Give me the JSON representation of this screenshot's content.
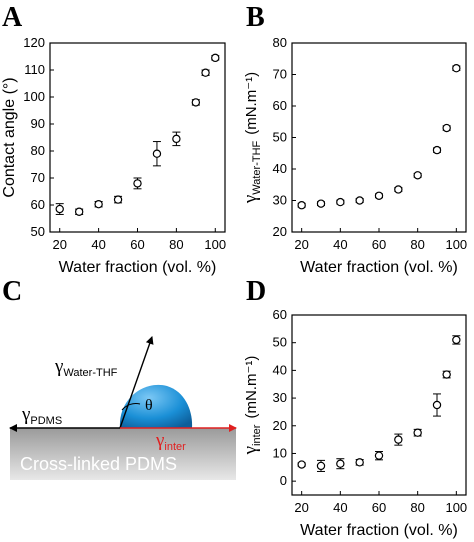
{
  "panels": {
    "A": "A",
    "B": "B",
    "C": "C",
    "D": "D"
  },
  "diagram": {
    "substrate_label": "Cross-linked PDMS",
    "gamma_symbol": "γ",
    "pdms_sub": "PDMS",
    "water_thf_sub": "Water-THF",
    "inter_sub": "inter",
    "theta": "θ",
    "colors": {
      "droplet": "#1a8fd6",
      "inter_arrow": "#e02020",
      "substrate_top": "#9a9a9a",
      "substrate_bottom": "#e8e8e8"
    }
  },
  "chart_data": [
    {
      "type": "scatter",
      "panel": "A",
      "title": "",
      "xlabel": "Water fraction (vol. %)",
      "ylabel": "Contact angle (°)",
      "ylabel_parts": {
        "gamma": "",
        "sub": "",
        "unit": ""
      },
      "xlim": [
        15,
        105
      ],
      "ylim": [
        50,
        120
      ],
      "xticks": [
        20,
        40,
        60,
        80,
        100
      ],
      "yticks": [
        50,
        60,
        70,
        80,
        90,
        100,
        110,
        120
      ],
      "x": [
        20,
        30,
        40,
        50,
        60,
        70,
        80,
        90,
        95,
        100
      ],
      "y": [
        58.5,
        57.5,
        60.3,
        62,
        68,
        79,
        84.5,
        98,
        109,
        114.5
      ],
      "err": [
        2,
        1,
        1,
        1.2,
        2,
        4.5,
        2.5,
        1,
        1,
        0.8
      ]
    },
    {
      "type": "scatter",
      "panel": "B",
      "title": "",
      "xlabel": "Water fraction (vol. %)",
      "ylabel": "",
      "ylabel_parts": {
        "gamma": "γ",
        "sub": "Water-THF",
        "unit": "(mN.m⁻¹)"
      },
      "xlim": [
        15,
        105
      ],
      "ylim": [
        20,
        80
      ],
      "xticks": [
        20,
        40,
        60,
        80,
        100
      ],
      "yticks": [
        20,
        30,
        40,
        50,
        60,
        70,
        80
      ],
      "x": [
        20,
        30,
        40,
        50,
        60,
        70,
        80,
        90,
        95,
        100
      ],
      "y": [
        28.5,
        29,
        29.5,
        30,
        31.5,
        33.5,
        38,
        46,
        53,
        72
      ],
      "err": [
        0.6,
        0.6,
        0.6,
        0.6,
        0.6,
        0.6,
        0.6,
        0.7,
        0.7,
        0.7
      ]
    },
    {
      "type": "scatter",
      "panel": "D",
      "title": "",
      "xlabel": "Water fraction (vol. %)",
      "ylabel": "",
      "ylabel_parts": {
        "gamma": "γ",
        "sub": "inter",
        "unit": "(mN.m⁻¹)"
      },
      "xlim": [
        15,
        105
      ],
      "ylim": [
        -5,
        60
      ],
      "xticks": [
        20,
        40,
        60,
        80,
        100
      ],
      "yticks": [
        0,
        10,
        20,
        30,
        40,
        50,
        60
      ],
      "x": [
        20,
        30,
        40,
        50,
        60,
        70,
        80,
        90,
        95,
        100
      ],
      "y": [
        6,
        5.5,
        6.3,
        6.8,
        9.2,
        15,
        17.5,
        27.5,
        38.5,
        51
      ],
      "err": [
        0.6,
        2,
        1.8,
        1,
        1.5,
        2,
        1.2,
        4,
        1.2,
        1.5
      ]
    }
  ]
}
